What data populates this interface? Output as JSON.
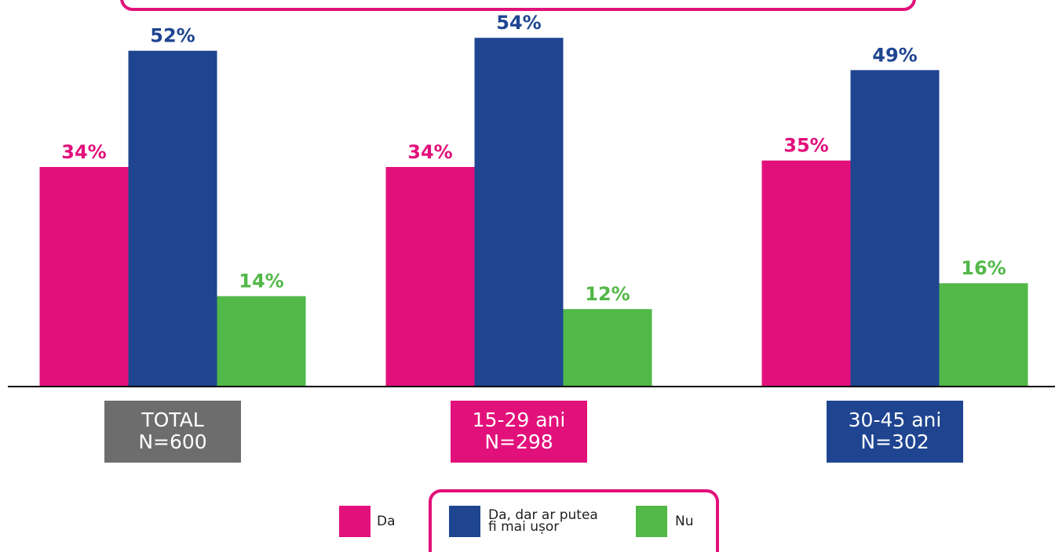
{
  "chart_data": {
    "type": "bar",
    "categories": [
      [
        "TOTAL",
        "N=600"
      ],
      [
        "15-29 ani",
        "N=298"
      ],
      [
        "30-45 ani",
        "N=302"
      ]
    ],
    "category_colors": [
      "#6d6d6d",
      "#e2107b",
      "#1f4591"
    ],
    "series": [
      {
        "name": "Da",
        "color": "#e2107b",
        "values": [
          34,
          34,
          35
        ],
        "value_labels": [
          "34%",
          "34%",
          "35%"
        ]
      },
      {
        "name": "Da, dar ar putea fi mai ușor",
        "color": "#1f4591",
        "values": [
          52,
          54,
          49
        ],
        "value_labels": [
          "52%",
          "54%",
          "49%"
        ]
      },
      {
        "name": "Nu",
        "color": "#52b848",
        "values": [
          14,
          12,
          16
        ],
        "value_labels": [
          "14%",
          "12%",
          "16%"
        ]
      }
    ],
    "ylim": [
      0,
      55
    ]
  }
}
